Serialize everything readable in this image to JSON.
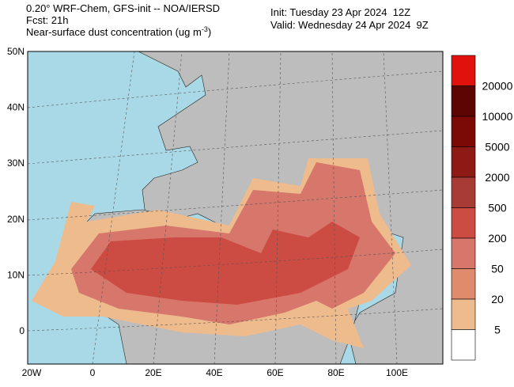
{
  "header": {
    "title": "0.20° WRF-Chem, GFS-init -- NOA/IERSD",
    "forecast": "Fcst: 21h",
    "variable": "Near-surface dust concentration (ug m",
    "unit_exponent": "-3",
    "variable_end": ")",
    "init": "Init: Tuesday 23 Apr 2024  12Z",
    "valid": "Valid: Wednesday 24 Apr 2024  9Z"
  },
  "map": {
    "lat_labels": [
      "50N",
      "40N",
      "30N",
      "20N",
      "10N",
      "0"
    ],
    "lon_labels": [
      "20W",
      "0",
      "20E",
      "40E",
      "60E",
      "80E",
      "100E"
    ]
  },
  "colorbar": {
    "levels": [
      20000,
      10000,
      5000,
      2000,
      500,
      200,
      50,
      20,
      5
    ]
  }
}
